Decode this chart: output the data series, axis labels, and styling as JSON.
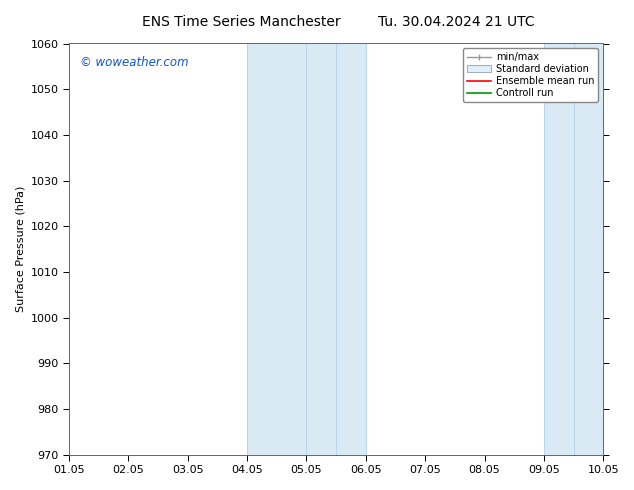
{
  "title_left": "ENS Time Series Manchester",
  "title_right": "Tu. 30.04.2024 21 UTC",
  "ylabel": "Surface Pressure (hPa)",
  "xlim": [
    0,
    9
  ],
  "ylim": [
    970,
    1060
  ],
  "yticks": [
    970,
    980,
    990,
    1000,
    1010,
    1020,
    1030,
    1040,
    1050,
    1060
  ],
  "xtick_positions": [
    0,
    1,
    2,
    3,
    4,
    5,
    6,
    7,
    8,
    9
  ],
  "xtick_labels": [
    "01.05",
    "02.05",
    "03.05",
    "04.05",
    "05.05",
    "06.05",
    "07.05",
    "08.05",
    "09.05",
    "10.05"
  ],
  "shaded_bands": [
    {
      "x_start": 3.0,
      "x_end": 4.0
    },
    {
      "x_start": 4.5,
      "x_end": 5.0
    },
    {
      "x_start": 8.0,
      "x_end": 8.5
    },
    {
      "x_start": 8.5,
      "x_end": 9.0
    }
  ],
  "shade_color": "#daeaf5",
  "shade_edge_color": "#b8d4e8",
  "watermark_text": "© woweather.com",
  "watermark_color": "#1155cc",
  "legend_items": [
    {
      "label": "min/max",
      "color": "#999999",
      "type": "errorbar"
    },
    {
      "label": "Standard deviation",
      "color": "#ccddee",
      "type": "fill"
    },
    {
      "label": "Ensemble mean run",
      "color": "#ff0000",
      "type": "line"
    },
    {
      "label": "Controll run",
      "color": "#009900",
      "type": "line"
    }
  ],
  "background_color": "#ffffff",
  "title_fontsize": 10,
  "axis_fontsize": 8,
  "tick_fontsize": 8
}
